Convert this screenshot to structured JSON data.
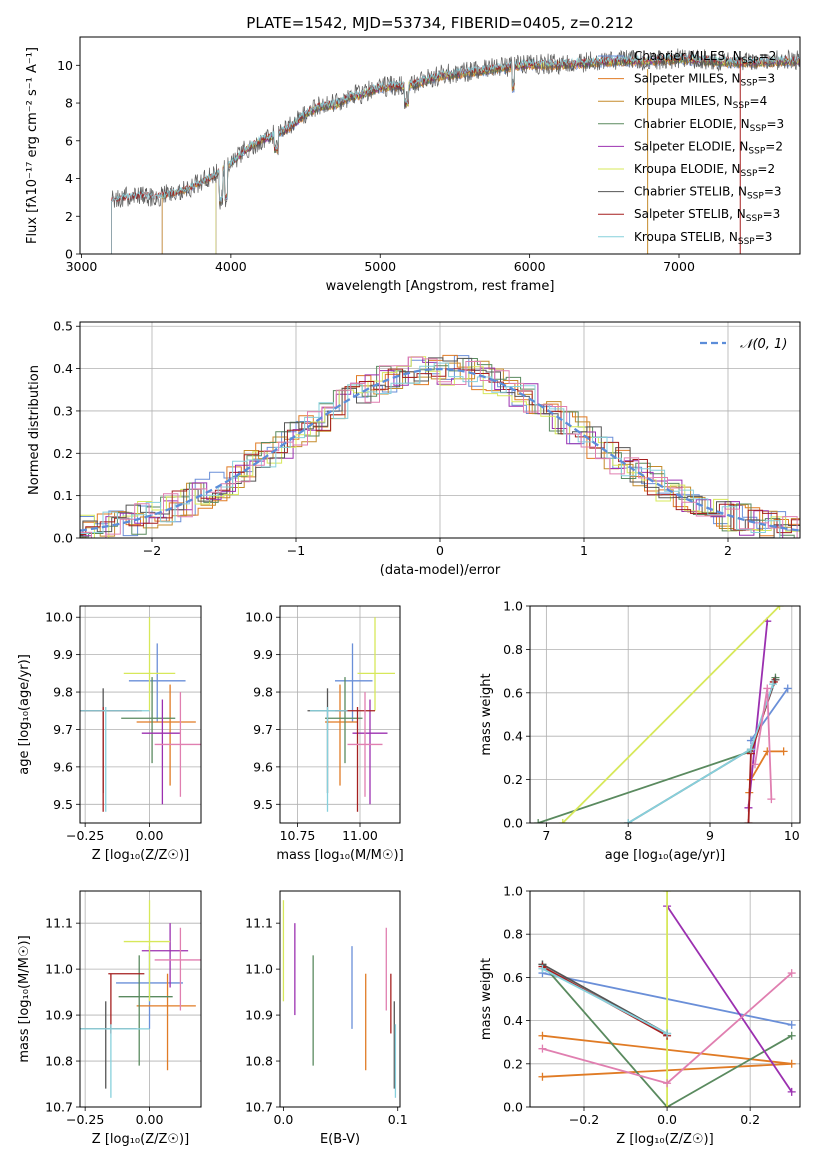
{
  "figure": {
    "title": "PLATE=1542, MJD=53734, FIBERID=0405, z=0.212",
    "colors": [
      "#6a8fd8",
      "#e07b25",
      "#c58b2b",
      "#5a8a5f",
      "#9b30b0",
      "#d7e85a",
      "#555555",
      "#a51f1f",
      "#86d0dc",
      "#e07fb0"
    ]
  },
  "chart_data": [
    {
      "id": "spectrum",
      "type": "line",
      "xlabel": "wavelength [Angstrom, rest frame]",
      "ylabel": "Flux [fλ10⁻¹⁷ erg cm⁻² s⁻¹ A⁻¹]",
      "xlim": [
        2990,
        7810
      ],
      "ylim": [
        0,
        11.5
      ],
      "xticks": [
        3000,
        4000,
        5000,
        6000,
        7000
      ],
      "yticks": [
        0,
        2,
        4,
        6,
        8,
        10
      ],
      "grid": false,
      "legend_position": "top-right",
      "continuum": {
        "x": [
          3200,
          3300,
          3400,
          3500,
          3600,
          3700,
          3800,
          3900,
          4000,
          4100,
          4200,
          4300,
          4400,
          4500,
          4600,
          4700,
          4800,
          4900,
          5000,
          5200,
          5400,
          5600,
          5800,
          6000,
          6200,
          6400,
          6600,
          6800,
          7000,
          7200,
          7400,
          7800
        ],
        "y": [
          2.8,
          3.0,
          3.1,
          3.0,
          3.2,
          3.4,
          3.8,
          4.2,
          4.8,
          5.5,
          6.0,
          6.3,
          6.7,
          7.4,
          7.8,
          7.9,
          8.3,
          8.5,
          8.8,
          8.9,
          9.4,
          9.6,
          9.8,
          10.0,
          10.0,
          10.1,
          10.2,
          10.2,
          10.3,
          10.2,
          10.1,
          10.2
        ]
      },
      "series": [
        {
          "name": "Chabrier MILES, N_SSP=2",
          "label": "Chabrier MILES, N",
          "sub": "SSP",
          "tail": "=2",
          "start": 3540
        },
        {
          "name": "Salpeter MILES, N_SSP=3",
          "label": "Salpeter MILES, N",
          "sub": "SSP",
          "tail": "=3",
          "start": 3540
        },
        {
          "name": "Kroupa MILES, N_SSP=4",
          "label": "Kroupa MILES, N",
          "sub": "SSP",
          "tail": "=4",
          "start": 3540
        },
        {
          "name": "Chabrier ELODIE, N_SSP=3",
          "label": "Chabrier ELODIE, N",
          "sub": "SSP",
          "tail": "=3",
          "start": 3900
        },
        {
          "name": "Salpeter ELODIE, N_SSP=2",
          "label": "Salpeter ELODIE, N",
          "sub": "SSP",
          "tail": "=2",
          "start": 3900
        },
        {
          "name": "Kroupa ELODIE, N_SSP=2",
          "label": "Kroupa ELODIE, N",
          "sub": "SSP",
          "tail": "=2",
          "start": 3900
        },
        {
          "name": "Chabrier STELIB, N_SSP=3",
          "label": "Chabrier STELIB, N",
          "sub": "SSP",
          "tail": "=3",
          "start": 3200
        },
        {
          "name": "Salpeter STELIB, N_SSP=3",
          "label": "Salpeter STELIB, N",
          "sub": "SSP",
          "tail": "=3",
          "start": 3200
        },
        {
          "name": "Kroupa STELIB, N_SSP=3",
          "label": "Kroupa STELIB, N",
          "sub": "SSP",
          "tail": "=3",
          "start": 3200
        }
      ]
    },
    {
      "id": "residuals",
      "type": "line",
      "xlabel": "(data-model)/error",
      "ylabel": "Normed distribution",
      "xlim": [
        -2.5,
        2.5
      ],
      "ylim": [
        0,
        0.51
      ],
      "xticks": [
        -2,
        -1,
        0,
        1,
        2
      ],
      "yticks": [
        0.0,
        0.1,
        0.2,
        0.3,
        0.4,
        0.5
      ],
      "grid": true,
      "legend_position": "top-right",
      "legend_label": "𝒩(0, 1)",
      "bin_width": 0.1,
      "series_colors": [
        "#6a8fd8",
        "#e07b25",
        "#c58b2b",
        "#5a8a5f",
        "#9b30b0",
        "#d7e85a",
        "#555555",
        "#a51f1f",
        "#86d0dc",
        "#e07fb0"
      ]
    },
    {
      "id": "age-vs-Z",
      "type": "scatter",
      "xlabel": "Z [log₁₀(Z/Z☉)]",
      "ylabel": "age  [log₁₀(age/yr)]",
      "xlim": [
        -0.27,
        0.2
      ],
      "ylim": [
        9.45,
        10.03
      ],
      "xticks": [
        -0.25,
        0.0
      ],
      "xticklabels": [
        "−0.25",
        "0.00"
      ],
      "yticks": [
        9.5,
        9.6,
        9.7,
        9.8,
        9.9,
        10.0
      ],
      "grid": true,
      "points": [
        {
          "x": 0.03,
          "y": 9.83,
          "xlo": -0.08,
          "xhi": 0.14,
          "ylo": 9.72,
          "yhi": 9.93,
          "color": "#6a8fd8"
        },
        {
          "x": 0.08,
          "y": 9.72,
          "xlo": -0.05,
          "xhi": 0.18,
          "ylo": 9.55,
          "yhi": 9.82,
          "color": "#e07b25"
        },
        {
          "x": 0.01,
          "y": 9.73,
          "xlo": -0.11,
          "xhi": 0.1,
          "ylo": 9.61,
          "yhi": 9.84,
          "color": "#5a8a5f"
        },
        {
          "x": 0.05,
          "y": 9.69,
          "xlo": -0.03,
          "xhi": 0.12,
          "ylo": 9.5,
          "yhi": 9.78,
          "color": "#9b30b0"
        },
        {
          "x": 0.0,
          "y": 9.85,
          "xlo": -0.1,
          "xhi": 0.1,
          "ylo": 9.75,
          "yhi": 10.0,
          "color": "#d7e85a"
        },
        {
          "x": -0.18,
          "y": 9.75,
          "xlo": -0.3,
          "xhi": -0.05,
          "ylo": 9.53,
          "yhi": 9.81,
          "color": "#555555"
        },
        {
          "x": -0.18,
          "y": 9.75,
          "xlo": -0.3,
          "xhi": -0.03,
          "ylo": 9.48,
          "yhi": 9.76,
          "color": "#a51f1f"
        },
        {
          "x": -0.17,
          "y": 9.75,
          "xlo": -0.3,
          "xhi": 0.0,
          "ylo": 9.48,
          "yhi": 9.76,
          "color": "#86d0dc"
        },
        {
          "x": 0.12,
          "y": 9.66,
          "xlo": 0.02,
          "xhi": 0.2,
          "ylo": 9.52,
          "yhi": 9.8,
          "color": "#e07fb0"
        }
      ]
    },
    {
      "id": "age-vs-mass",
      "type": "scatter",
      "xlabel": "mass [log₁₀(M/M☉)]",
      "ylabel": "",
      "xlim": [
        10.68,
        11.16
      ],
      "ylim": [
        9.45,
        10.03
      ],
      "xticks": [
        10.75,
        11.0
      ],
      "xticklabels": [
        "10.75",
        "11.00"
      ],
      "yticks": [
        9.5,
        9.6,
        9.7,
        9.8,
        9.9,
        10.0
      ],
      "grid": true,
      "points": [
        {
          "x": 10.97,
          "y": 9.83,
          "xlo": 10.9,
          "xhi": 11.05,
          "ylo": 9.72,
          "yhi": 9.93,
          "color": "#6a8fd8"
        },
        {
          "x": 10.92,
          "y": 9.72,
          "xlo": 10.86,
          "xhi": 10.99,
          "ylo": 9.55,
          "yhi": 9.82,
          "color": "#e07b25"
        },
        {
          "x": 10.94,
          "y": 9.73,
          "xlo": 10.86,
          "xhi": 11.01,
          "ylo": 9.61,
          "yhi": 9.84,
          "color": "#5a8a5f"
        },
        {
          "x": 11.04,
          "y": 9.69,
          "xlo": 10.97,
          "xhi": 11.11,
          "ylo": 9.5,
          "yhi": 9.78,
          "color": "#9b30b0"
        },
        {
          "x": 11.06,
          "y": 9.85,
          "xlo": 10.99,
          "xhi": 11.14,
          "ylo": 9.75,
          "yhi": 10.0,
          "color": "#d7e85a"
        },
        {
          "x": 10.87,
          "y": 9.75,
          "xlo": 10.79,
          "xhi": 10.95,
          "ylo": 9.53,
          "yhi": 9.81,
          "color": "#555555"
        },
        {
          "x": 10.99,
          "y": 9.75,
          "xlo": 10.9,
          "xhi": 11.06,
          "ylo": 9.48,
          "yhi": 9.76,
          "color": "#a51f1f"
        },
        {
          "x": 10.87,
          "y": 9.75,
          "xlo": 10.8,
          "xhi": 10.95,
          "ylo": 9.48,
          "yhi": 9.76,
          "color": "#86d0dc"
        },
        {
          "x": 11.02,
          "y": 9.66,
          "xlo": 10.95,
          "xhi": 11.09,
          "ylo": 9.52,
          "yhi": 9.8,
          "color": "#e07fb0"
        }
      ]
    },
    {
      "id": "mass-weight-vs-age",
      "type": "line",
      "xlabel": "age  [log₁₀(age/yr)]",
      "ylabel": "mass weight",
      "xlim": [
        6.8,
        10.1
      ],
      "ylim": [
        0,
        1.0
      ],
      "xticks": [
        7,
        8,
        9,
        10
      ],
      "yticks": [
        0.0,
        0.2,
        0.4,
        0.6,
        0.8,
        1.0
      ],
      "grid": true,
      "series": [
        {
          "color": "#6a8fd8",
          "x": [
            9.95,
            9.5
          ],
          "y": [
            0.62,
            0.38
          ]
        },
        {
          "color": "#e07b25",
          "x": [
            9.9,
            9.7,
            9.5,
            9.48
          ],
          "y": [
            0.33,
            0.33,
            0.2,
            0.14
          ]
        },
        {
          "color": "#5a8a5f",
          "x": [
            6.9,
            9.5,
            9.8
          ],
          "y": [
            0.0,
            0.33,
            0.67
          ]
        },
        {
          "color": "#9b30b0",
          "x": [
            9.7,
            9.47
          ],
          "y": [
            0.93,
            0.07
          ]
        },
        {
          "color": "#d7e85a",
          "x": [
            7.2,
            9.85
          ],
          "y": [
            0.0,
            1.0
          ]
        },
        {
          "color": "#555555",
          "x": [
            8.0,
            9.5,
            9.8
          ],
          "y": [
            0.0,
            0.34,
            0.66
          ]
        },
        {
          "color": "#a51f1f",
          "x": [
            9.47,
            9.5,
            9.78
          ],
          "y": [
            0.0,
            0.32,
            0.65
          ]
        },
        {
          "color": "#86d0dc",
          "x": [
            8.0,
            9.5,
            9.77
          ],
          "y": [
            0.0,
            0.34,
            0.64
          ]
        },
        {
          "color": "#e07fb0",
          "x": [
            9.75,
            9.7,
            9.55
          ],
          "y": [
            0.11,
            0.62,
            0.27
          ]
        }
      ]
    },
    {
      "id": "mass-vs-Z",
      "type": "scatter",
      "xlabel": "Z [log₁₀(Z/Z☉)]",
      "ylabel": "mass [log₁₀(M/M☉)]",
      "xlim": [
        -0.27,
        0.2
      ],
      "ylim": [
        10.7,
        11.17
      ],
      "xticks": [
        -0.25,
        0.0
      ],
      "xticklabels": [
        "−0.25",
        "0.00"
      ],
      "yticks": [
        10.7,
        10.8,
        10.9,
        11.0,
        11.1
      ],
      "grid": true,
      "points": [
        {
          "x": 0.0,
          "y": 10.97,
          "xlo": -0.13,
          "xhi": 0.13,
          "ylo": 10.87,
          "yhi": 11.05,
          "color": "#6a8fd8"
        },
        {
          "x": 0.07,
          "y": 10.92,
          "xlo": -0.05,
          "xhi": 0.18,
          "ylo": 10.78,
          "yhi": 10.99,
          "color": "#e07b25"
        },
        {
          "x": -0.04,
          "y": 10.94,
          "xlo": -0.12,
          "xhi": 0.09,
          "ylo": 10.79,
          "yhi": 11.03,
          "color": "#5a8a5f"
        },
        {
          "x": 0.08,
          "y": 11.04,
          "xlo": -0.03,
          "xhi": 0.15,
          "ylo": 10.96,
          "yhi": 11.1,
          "color": "#9b30b0"
        },
        {
          "x": 0.0,
          "y": 11.06,
          "xlo": -0.1,
          "xhi": 0.08,
          "ylo": 10.93,
          "yhi": 11.15,
          "color": "#d7e85a"
        },
        {
          "x": -0.17,
          "y": 10.87,
          "xlo": -0.3,
          "xhi": -0.05,
          "ylo": 10.74,
          "yhi": 10.93,
          "color": "#555555"
        },
        {
          "x": -0.15,
          "y": 10.99,
          "xlo": -0.16,
          "xhi": -0.02,
          "ylo": 10.86,
          "yhi": 10.99,
          "color": "#a51f1f"
        },
        {
          "x": -0.15,
          "y": 10.87,
          "xlo": -0.3,
          "xhi": 0.0,
          "ylo": 10.72,
          "yhi": 10.88,
          "color": "#86d0dc"
        },
        {
          "x": 0.12,
          "y": 11.02,
          "xlo": 0.02,
          "xhi": 0.2,
          "ylo": 10.91,
          "yhi": 11.09,
          "color": "#e07fb0"
        }
      ]
    },
    {
      "id": "mass-vs-EBV",
      "type": "scatter",
      "xlabel": "E(B-V)",
      "ylabel": "",
      "xlim": [
        -0.003,
        0.102
      ],
      "ylim": [
        10.7,
        11.17
      ],
      "xticks": [
        0.0,
        0.1
      ],
      "xticklabels": [
        "0.0",
        "0.1"
      ],
      "yticks": [
        10.7,
        10.8,
        10.9,
        11.0,
        11.1
      ],
      "grid": false,
      "points": [
        {
          "x": 0.06,
          "y": 10.97,
          "ylo": 10.87,
          "yhi": 11.05,
          "color": "#6a8fd8"
        },
        {
          "x": 0.072,
          "y": 10.92,
          "ylo": 10.78,
          "yhi": 10.99,
          "color": "#e07b25"
        },
        {
          "x": 0.026,
          "y": 10.94,
          "ylo": 10.79,
          "yhi": 11.03,
          "color": "#5a8a5f"
        },
        {
          "x": 0.01,
          "y": 11.04,
          "ylo": 10.9,
          "yhi": 11.1,
          "color": "#9b30b0"
        },
        {
          "x": 0.0,
          "y": 11.06,
          "ylo": 10.93,
          "yhi": 11.15,
          "color": "#d7e85a"
        },
        {
          "x": 0.097,
          "y": 10.87,
          "ylo": 10.74,
          "yhi": 10.93,
          "color": "#555555"
        },
        {
          "x": 0.094,
          "y": 10.99,
          "ylo": 10.86,
          "yhi": 10.99,
          "color": "#a51f1f"
        },
        {
          "x": 0.098,
          "y": 10.87,
          "ylo": 10.72,
          "yhi": 10.88,
          "color": "#86d0dc"
        },
        {
          "x": 0.09,
          "y": 11.02,
          "ylo": 10.91,
          "yhi": 11.09,
          "color": "#e07fb0"
        }
      ]
    },
    {
      "id": "mass-weight-vs-Z",
      "type": "line",
      "xlabel": "Z [log₁₀(Z/Z☉)]",
      "ylabel": "mass weight",
      "xlim": [
        -0.33,
        0.32
      ],
      "ylim": [
        0,
        1.0
      ],
      "xticks": [
        -0.2,
        0.0,
        0.2
      ],
      "xticklabels": [
        "−0.2",
        "0.0",
        "0.2"
      ],
      "yticks": [
        0.0,
        0.2,
        0.4,
        0.6,
        0.8,
        1.0
      ],
      "grid": true,
      "series": [
        {
          "color": "#6a8fd8",
          "x": [
            -0.3,
            0.3
          ],
          "y": [
            0.62,
            0.38
          ]
        },
        {
          "color": "#e07b25",
          "x": [
            -0.3,
            0.3,
            -0.3
          ],
          "y": [
            0.33,
            0.2,
            0.14
          ]
        },
        {
          "color": "#5a8a5f",
          "x": [
            -0.3,
            0.0,
            0.3
          ],
          "y": [
            0.66,
            0.0,
            0.33
          ]
        },
        {
          "color": "#9b30b0",
          "x": [
            0.0,
            0.3
          ],
          "y": [
            0.93,
            0.07
          ]
        },
        {
          "color": "#d7e85a",
          "x": [
            0.0,
            0.0
          ],
          "y": [
            0.0,
            1.0
          ]
        },
        {
          "color": "#555555",
          "x": [
            -0.3,
            0.0
          ],
          "y": [
            0.66,
            0.34
          ]
        },
        {
          "color": "#a51f1f",
          "x": [
            -0.3,
            0.0
          ],
          "y": [
            0.65,
            0.33
          ]
        },
        {
          "color": "#86d0dc",
          "x": [
            -0.3,
            0.0
          ],
          "y": [
            0.64,
            0.34
          ]
        },
        {
          "color": "#e07fb0",
          "x": [
            0.3,
            0.0,
            -0.3
          ],
          "y": [
            0.62,
            0.11,
            0.27
          ]
        }
      ]
    }
  ]
}
